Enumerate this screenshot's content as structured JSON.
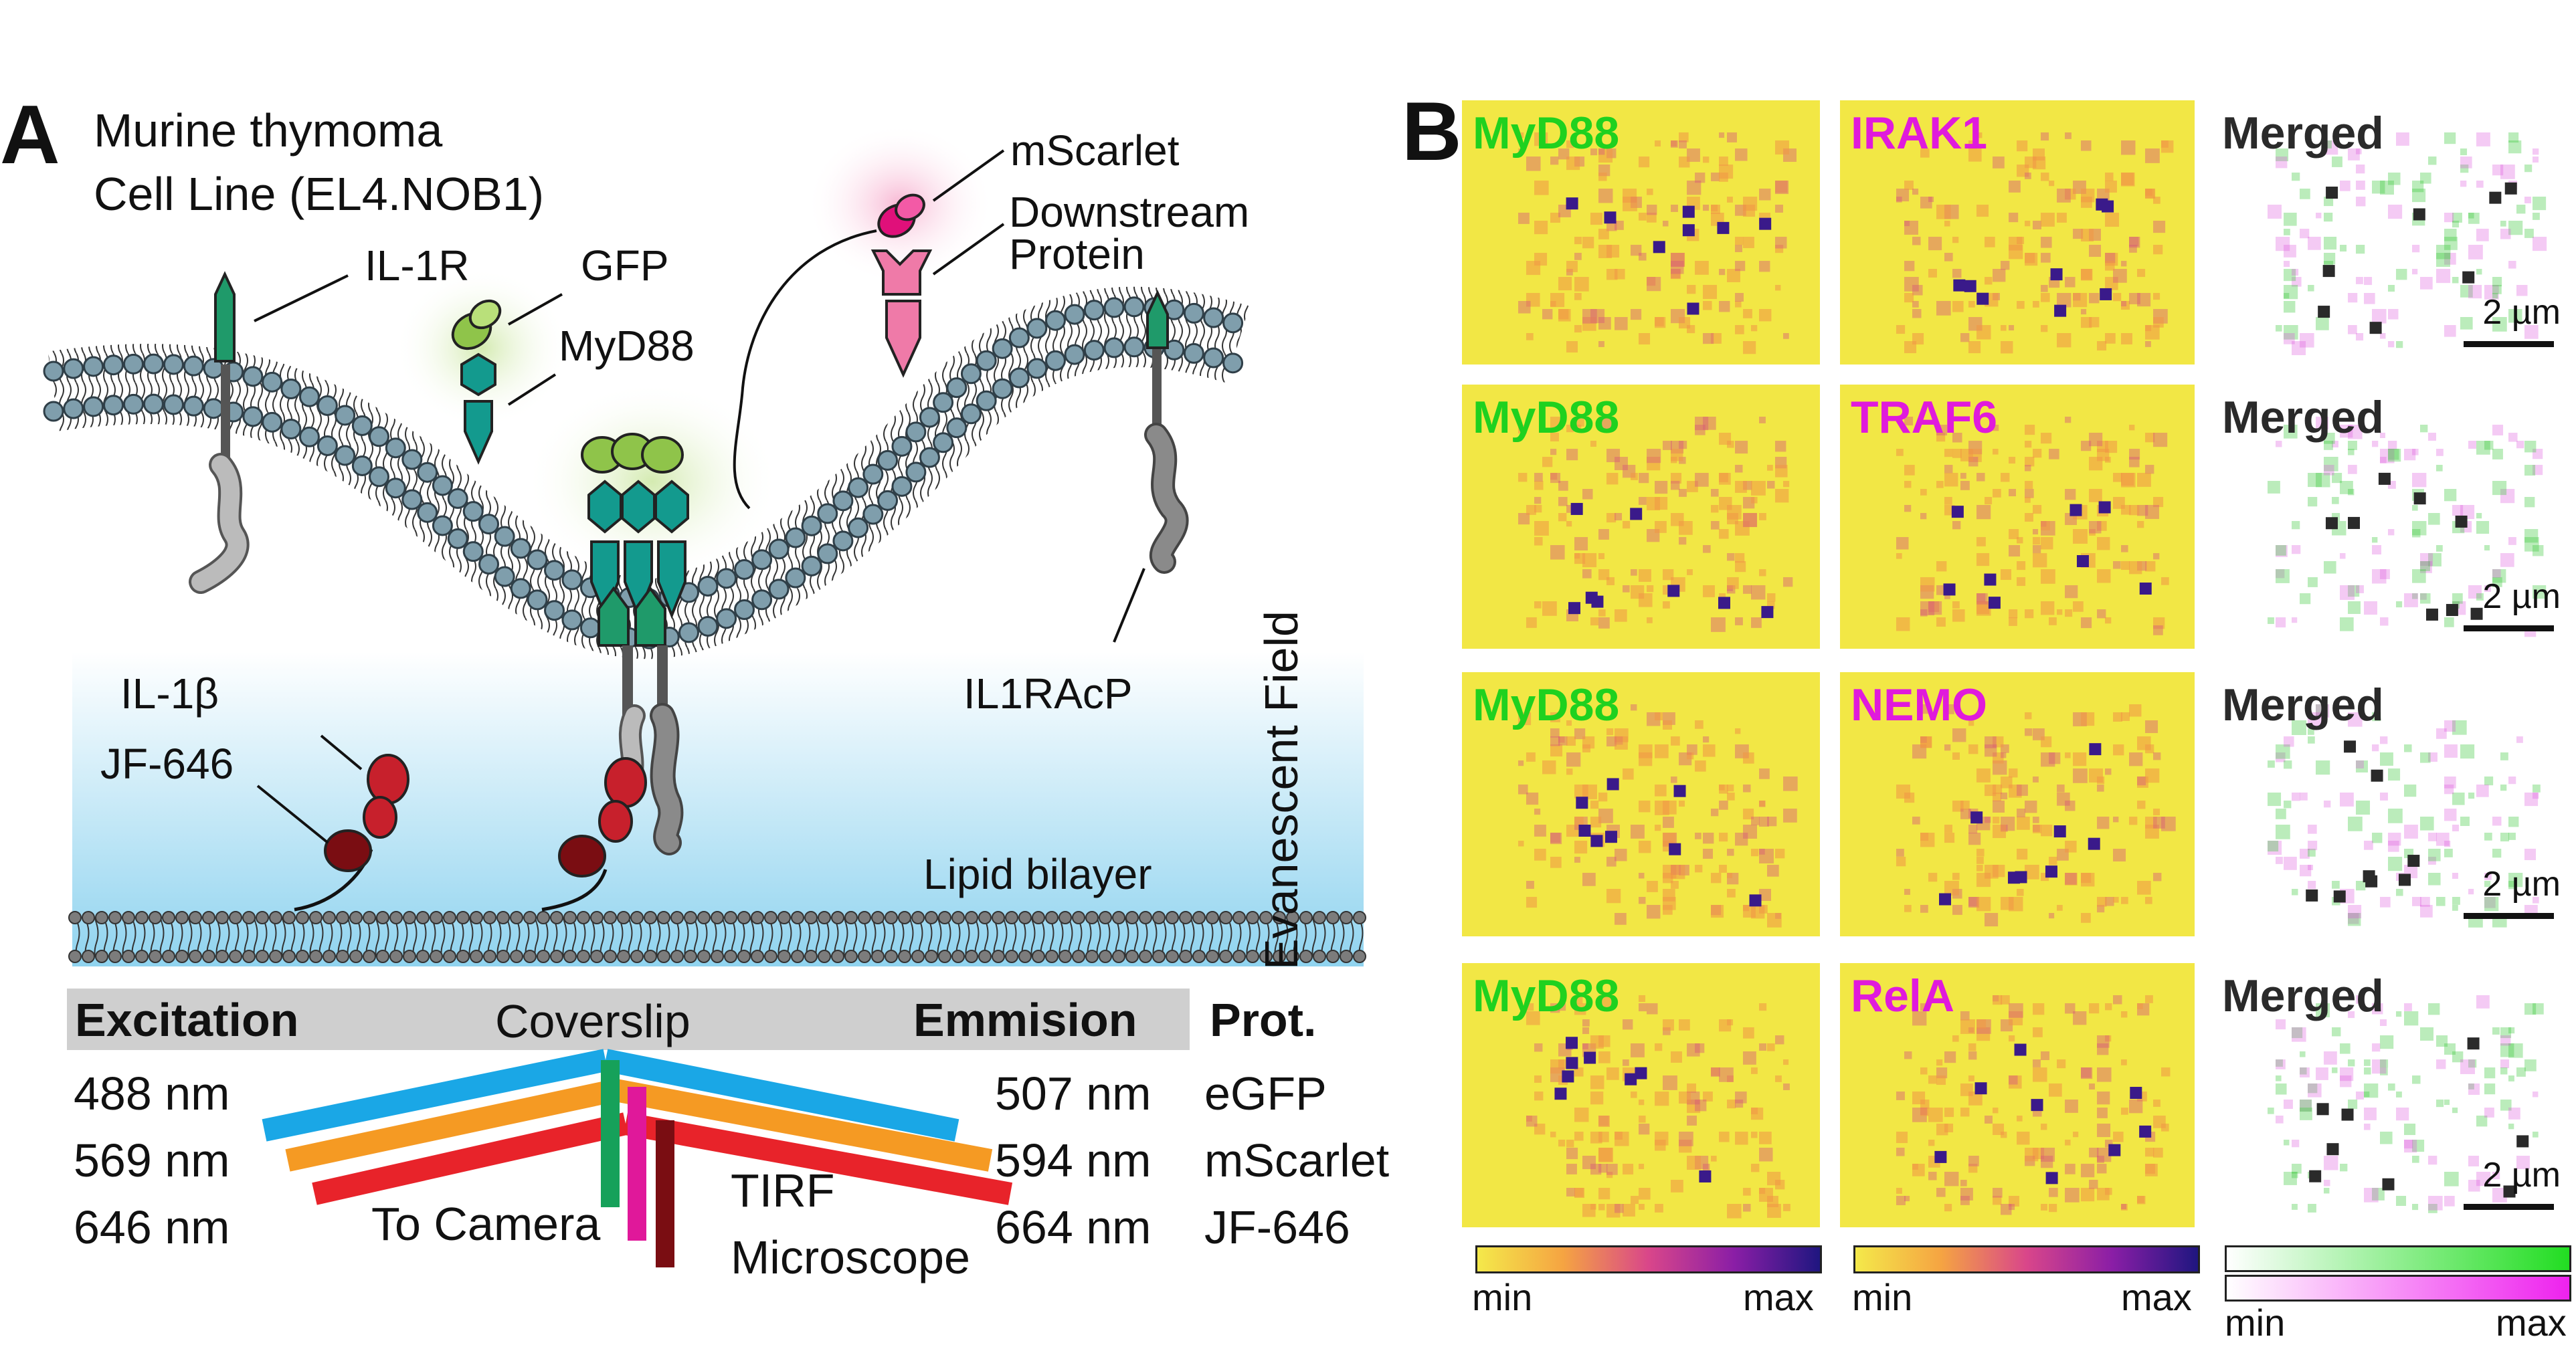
{
  "panel_a": {
    "letter": "A",
    "title_line1": "Murine thymoma",
    "title_line2": "Cell Line (EL4.NOB1)",
    "labels": {
      "il1r": "IL-1R",
      "gfp": "GFP",
      "myd88": "MyD88",
      "mscarlet": "mScarlet",
      "downstream_line1": "Downstream",
      "downstream_line2": "Protein",
      "il1racp": "IL1RAcP",
      "il1b": "IL-1β",
      "jf646": "JF-646",
      "lipid_bilayer": "Lipid bilayer",
      "evanescent_field": "Evanescent Field",
      "coverslip": "Coverslip",
      "to_camera": "To Camera",
      "tirf_line1": "TIRF",
      "tirf_line2": "Microscope"
    },
    "optics_table": {
      "excitation_header": "Excitation",
      "emission_header": "Emmision",
      "protein_header": "Prot.",
      "excitation": [
        "488 nm",
        "569 nm",
        "646 nm"
      ],
      "emission": [
        "507 nm",
        "594 nm",
        "664 nm"
      ],
      "proteins": [
        "eGFP",
        "mScarlet",
        "JF-646"
      ]
    },
    "colors": {
      "receptor_green": "#1f9a6a",
      "gfp_lime": "#8fc44a",
      "myd88_teal": "#139a8e",
      "mscarlet_magenta": "#e0107a",
      "downstream_pink": "#ef7aa8",
      "il1b_red": "#c7202c",
      "jf646_darkred": "#7a0d12",
      "beam_blue": "#1aa7e6",
      "beam_orange": "#f59a23",
      "beam_red": "#e8232a",
      "lipid_head": "#7f9eac"
    }
  },
  "panel_b": {
    "letter": "B",
    "rows": [
      {
        "left": "MyD88",
        "right": "IRAK1",
        "merged": "Merged",
        "scale": "2 µm"
      },
      {
        "left": "MyD88",
        "right": "TRAF6",
        "merged": "Merged",
        "scale": "2 µm"
      },
      {
        "left": "MyD88",
        "right": "NEMO",
        "merged": "Merged",
        "scale": "2 µm"
      },
      {
        "left": "MyD88",
        "right": "RelA",
        "merged": "Merged",
        "scale": "2 µm"
      }
    ],
    "colorbars": {
      "min": "min",
      "max": "max"
    },
    "colors": {
      "myd88_label": "#1fd11f",
      "partner_label": "#e01adc",
      "merged_label": "#2a2a2a"
    }
  }
}
